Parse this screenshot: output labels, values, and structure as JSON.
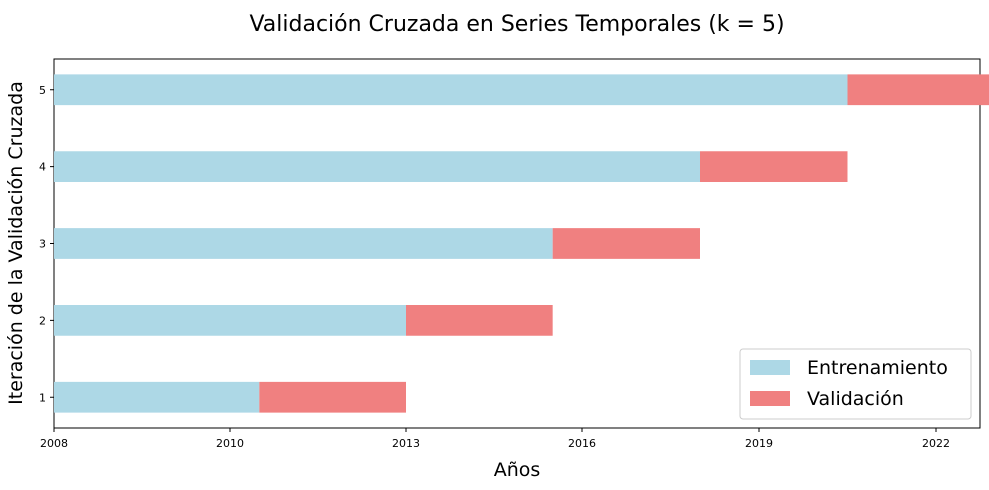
{
  "chart_data": {
    "type": "bar",
    "orientation": "horizontal",
    "stacked": true,
    "title": "Validación Cruzada en Series Temporales (k = 5)",
    "xlabel": "Años",
    "ylabel": "Iteración de la Validación Cruzada",
    "xlim": [
      2008.0,
      2022.3
    ],
    "ylim": [
      0.6,
      5.4
    ],
    "x_ticks": [
      {
        "value": 2008.0,
        "label": "2008"
      },
      {
        "value": 2010.0,
        "label": "2010"
      },
      {
        "value": 2013.0,
        "label": "2013"
      },
      {
        "value": 2016.0,
        "label": "2016"
      },
      {
        "value": 2019.0,
        "label": "2019"
      },
      {
        "value": 2022.0,
        "label": "2022"
      }
    ],
    "categories": [
      "1",
      "2",
      "3",
      "4",
      "5"
    ],
    "series": [
      {
        "name": "Entrenamiento",
        "color": "#add8e6",
        "bars": [
          {
            "start": 2008.0,
            "end": 2010.5
          },
          {
            "start": 2008.0,
            "end": 2013.0
          },
          {
            "start": 2008.0,
            "end": 2015.5
          },
          {
            "start": 2008.0,
            "end": 2018.0
          },
          {
            "start": 2008.0,
            "end": 2020.5
          }
        ]
      },
      {
        "name": "Validación",
        "color": "#f08080",
        "bars": [
          {
            "start": 2010.5,
            "end": 2013.0
          },
          {
            "start": 2013.0,
            "end": 2015.5
          },
          {
            "start": 2015.5,
            "end": 2018.0
          },
          {
            "start": 2018.0,
            "end": 2020.5
          },
          {
            "start": 2020.5,
            "end": 2023.0
          }
        ]
      }
    ],
    "legend_position": "bottom-right",
    "grid": false
  }
}
